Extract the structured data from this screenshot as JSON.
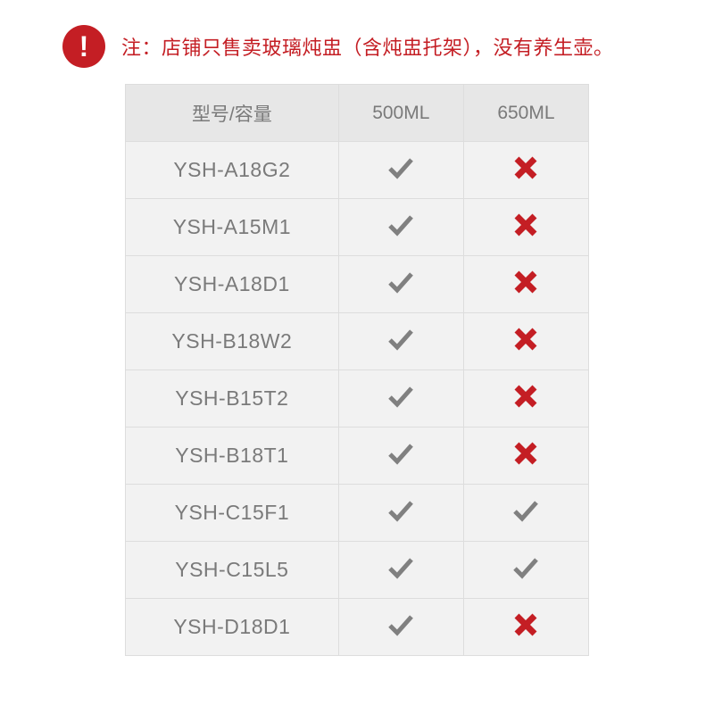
{
  "notice": {
    "icon_glyph": "!",
    "text": "注：店铺只售卖玻璃炖盅（含炖盅托架），没有养生壶。"
  },
  "colors": {
    "red": "#c41e24",
    "gray_text": "#7a7a7a",
    "header_bg": "#e7e7e7",
    "body_bg": "#f2f2f2",
    "border": "#dddddd",
    "check": "#808080",
    "cross": "#c41e24"
  },
  "table": {
    "columns": [
      "型号/容量",
      "500ML",
      "650ML"
    ],
    "rows": [
      {
        "model": "YSH-A18G2",
        "c500": true,
        "c650": false
      },
      {
        "model": "YSH-A15M1",
        "c500": true,
        "c650": false
      },
      {
        "model": "YSH-A18D1",
        "c500": true,
        "c650": false
      },
      {
        "model": "YSH-B18W2",
        "c500": true,
        "c650": false
      },
      {
        "model": "YSH-B15T2",
        "c500": true,
        "c650": false
      },
      {
        "model": "YSH-B18T1",
        "c500": true,
        "c650": false
      },
      {
        "model": "YSH-C15F1",
        "c500": true,
        "c650": true
      },
      {
        "model": "YSH-C15L5",
        "c500": true,
        "c650": true
      },
      {
        "model": "YSH-D18D1",
        "c500": true,
        "c650": false
      }
    ]
  }
}
